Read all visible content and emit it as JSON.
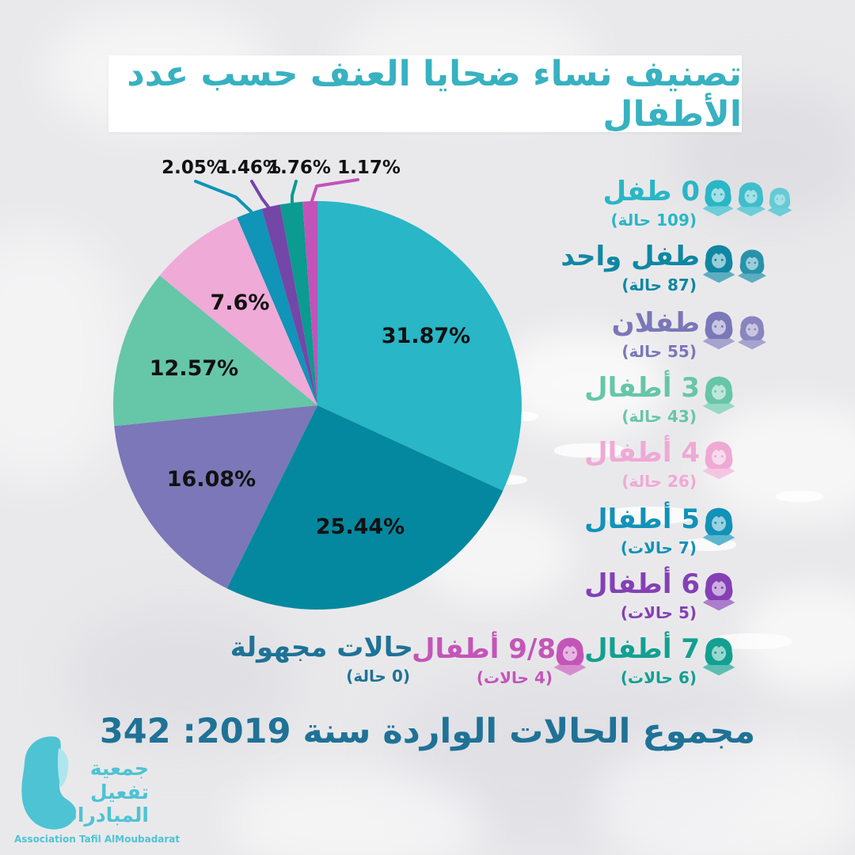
{
  "title": "تصنيف نساء ضحايا العنف حسب عدد الأطفال",
  "title_color": "#38b1c1",
  "chart_data": {
    "type": "pie",
    "title": "تصنيف نساء ضحايا العنف حسب عدد الأطفال",
    "categories": [
      "0 طفل",
      "طفل واحد",
      "طفلان",
      "3 أطفال",
      "4 أطفال",
      "5 أطفال",
      "6 أطفال",
      "7 أطفال",
      "9/8 أطفال",
      "حالات مجهولة"
    ],
    "counts": [
      109,
      87,
      55,
      43,
      26,
      7,
      5,
      6,
      4,
      0
    ],
    "values": [
      31.87,
      25.44,
      16.08,
      12.57,
      7.6,
      2.05,
      1.46,
      1.76,
      1.17,
      0
    ],
    "slice_labels": [
      "31.87%",
      "25.44%",
      "16.08%",
      "12.57%",
      "7.6%",
      "2.05%",
      "1.46%",
      "1.76%",
      "1.17%",
      ""
    ],
    "colors": [
      "#29b6c6",
      "#04889f",
      "#7b77b8",
      "#66c6a8",
      "#efaad8",
      "#1094b8",
      "#7446a8",
      "#0b9b90",
      "#c253b9",
      "#1f7296"
    ],
    "total": 342,
    "year": 2019,
    "legend_position": "right",
    "label_color": "#111111"
  },
  "legend": {
    "items": [
      {
        "label": "0 طفل",
        "count": "(109 حالة)",
        "color": "#29b6c6",
        "icons": 3
      },
      {
        "label": "طفل واحد",
        "count": "(87 حالة)",
        "color": "#0f87a2",
        "icons": 2
      },
      {
        "label": "طفلان",
        "count": "(55 حالة)",
        "color": "#7b77b8",
        "icons": 2
      },
      {
        "label": "3 أطفال",
        "count": "(43 حالة)",
        "color": "#66c6a8",
        "icons": 1
      },
      {
        "label": "4 أطفال",
        "count": "(26 حالة)",
        "color": "#efa9d5",
        "icons": 1
      },
      {
        "label": "5 أطفال",
        "count": "(7 حالات)",
        "color": "#1292b8",
        "icons": 1
      },
      {
        "label": "6 أطفال",
        "count": "(5 حالات)",
        "color": "#8440b4",
        "icons": 1
      },
      {
        "label": "7 أطفال",
        "count": "(6 حالات)",
        "color": "#12a091",
        "icons": 1
      },
      {
        "label": "9/8 أطفال",
        "count": "(4 حالات)",
        "color": "#c455b8",
        "icons": 1
      },
      {
        "label": "حالات مجهولة",
        "count": "(0 حالة)",
        "color": "#1f7296",
        "icons": 0
      }
    ]
  },
  "footer": {
    "total_text": "مجموع الحالات الواردة سنة 2019: 342",
    "total_color": "#1f7296"
  },
  "logo": {
    "arabic_lines": [
      "جمعية",
      "تفعيل",
      "المبادرات"
    ],
    "english": "Association Tafil AlMoubadarat",
    "color": "#4ec3d4"
  }
}
